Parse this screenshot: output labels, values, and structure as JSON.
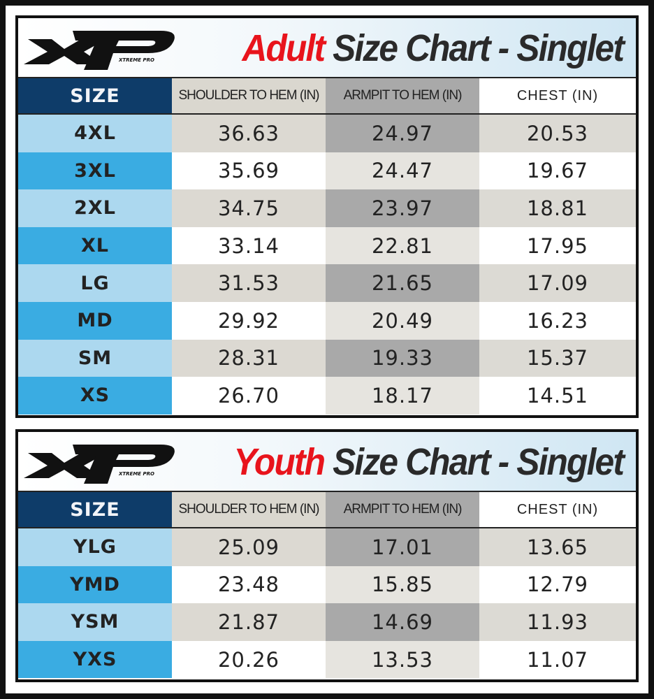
{
  "logo_text": "XP Xtreme Pro",
  "columns": [
    "SIZE",
    "SHOULDER TO HEM (IN)",
    "ARMPIT TO HEM (IN)",
    "CHEST (IN)"
  ],
  "adult": {
    "title_accent": "Adult",
    "title_rest": " Size Chart - Singlet",
    "rows": [
      [
        "4XL",
        "36.63",
        "24.97",
        "20.53"
      ],
      [
        "3XL",
        "35.69",
        "24.47",
        "19.67"
      ],
      [
        "2XL",
        "34.75",
        "23.97",
        "18.81"
      ],
      [
        "XL",
        "33.14",
        "22.81",
        "17.95"
      ],
      [
        "LG",
        "31.53",
        "21.65",
        "17.09"
      ],
      [
        "MD",
        "29.92",
        "20.49",
        "16.23"
      ],
      [
        "SM",
        "28.31",
        "19.33",
        "15.37"
      ],
      [
        "XS",
        "26.70",
        "18.17",
        "14.51"
      ]
    ]
  },
  "youth": {
    "title_accent": "Youth",
    "title_rest": " Size Chart - Singlet",
    "rows": [
      [
        "YLG",
        "25.09",
        "17.01",
        "13.65"
      ],
      [
        "YMD",
        "23.48",
        "15.85",
        "12.79"
      ],
      [
        "YSM",
        "21.87",
        "14.69",
        "11.93"
      ],
      [
        "YXS",
        "20.26",
        "13.53",
        "11.07"
      ]
    ]
  },
  "colors": {
    "accent_red": "#e8141c",
    "navy": "#0e3c69",
    "blue": "#3aace2",
    "light_blue": "#acd8ef"
  }
}
